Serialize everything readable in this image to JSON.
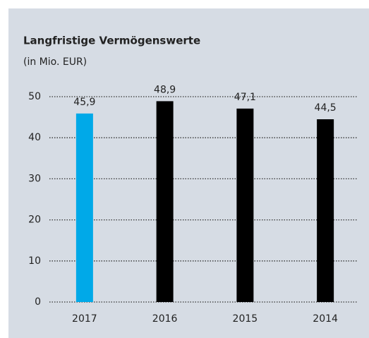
{
  "chart_data": {
    "type": "bar",
    "title": "Langfristige Vermögenswerte",
    "subtitle": "(in Mio. EUR)",
    "categories": [
      "2017",
      "2016",
      "2015",
      "2014"
    ],
    "values": [
      45.9,
      48.9,
      47.1,
      44.5
    ],
    "value_labels": [
      "45,9",
      "48,9",
      "47,1",
      "44,5"
    ],
    "colors": [
      "#00a9e8",
      "#000000",
      "#000000",
      "#000000"
    ],
    "ylim": [
      0,
      50
    ],
    "yticks": [
      0,
      10,
      20,
      30,
      40,
      50
    ],
    "grid": true
  }
}
